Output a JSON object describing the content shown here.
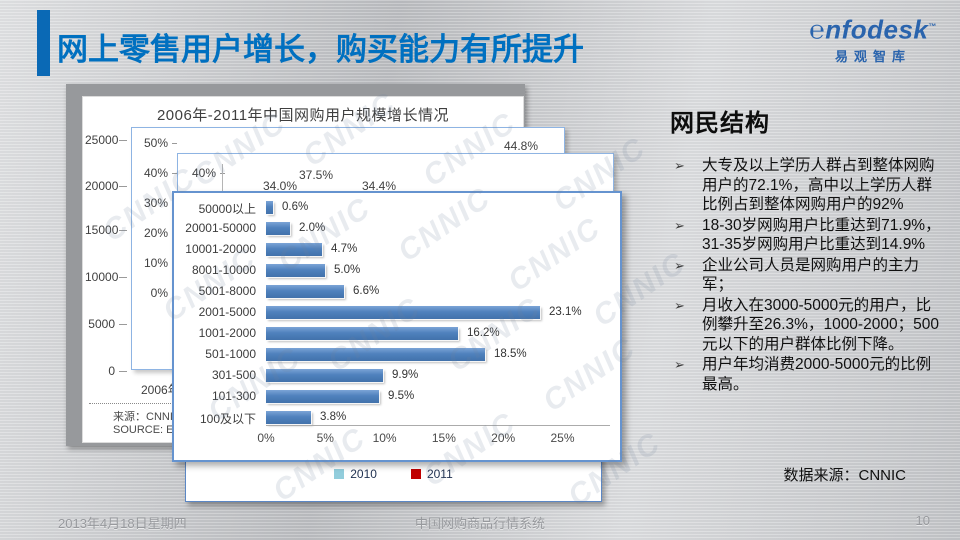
{
  "slide": {
    "title": "网上零售用户增长，购买能力有所提升",
    "logo": {
      "script_initial": "℮",
      "brand": "nfodesk",
      "tm": "™",
      "subtitle": "易观智库"
    },
    "footer": {
      "date": "2013年4月18日星期四",
      "system": "中国网购商品行情系统",
      "page": "10"
    }
  },
  "sidebar": {
    "heading": "网民结构",
    "bullet_marker": "➢",
    "bullets": [
      "大专及以上学历人群占到整体网购用户的72.1%，高中以上学历人群比例占到整体网购用户的92%",
      "18-30岁网购用户比重达到71.9%，31-35岁网购用户比重达到14.9%",
      "企业公司人员是网购用户的主力军；",
      "月收入在3000-5000元的用户，比例攀升至26.3%，1000-2000；500元以下的用户群体比例下降。",
      "用户年均消费2000-5000元的比例最高。"
    ],
    "source": "数据来源：CNNIC"
  },
  "watermark_text": "CNNIC",
  "chart_data": [
    {
      "panel": "back",
      "type": "bar",
      "title": "2006年-2011年中国网购用户规模增长情况",
      "y_ticks": [
        "25000",
        "20000",
        "15000",
        "10000",
        "5000",
        "0"
      ],
      "x_ticks": [
        "2006年"
      ],
      "source_lines": [
        "来源：CNNIC·",
        "SOURCE: Enf"
      ]
    },
    {
      "panel": "middle-growth",
      "type": "bar",
      "y_ticks": [
        "50%",
        "40%",
        "30%",
        "20%",
        "10%",
        "0%"
      ],
      "data_labels": [
        "44.8%"
      ]
    },
    {
      "panel": "middle-rate",
      "type": "bar",
      "y_ticks": [
        "40%"
      ],
      "data_labels": [
        "34.0%",
        "37.5%",
        "34.4%"
      ]
    },
    {
      "panel": "front-income",
      "type": "bar",
      "orientation": "horizontal",
      "categories": [
        "50000以上",
        "20001-50000",
        "10001-20000",
        "8001-10000",
        "5001-8000",
        "2001-5000",
        "1001-2000",
        "501-1000",
        "301-500",
        "101-300",
        "100及以下"
      ],
      "values": [
        0.6,
        2.0,
        4.7,
        5.0,
        6.6,
        23.1,
        16.2,
        18.5,
        9.9,
        9.5,
        3.8
      ],
      "value_labels": [
        "0.6%",
        "2.0%",
        "4.7%",
        "5.0%",
        "6.6%",
        "23.1%",
        "16.2%",
        "18.5%",
        "9.9%",
        "9.5%",
        "3.8%"
      ],
      "x_ticks": [
        "0%",
        "5%",
        "10%",
        "15%",
        "20%",
        "25%"
      ],
      "xlim": [
        0,
        25
      ],
      "bar_color": "#4f81bd",
      "legend": [
        {
          "label": "2010",
          "color": "#92cddc"
        },
        {
          "label": "2011",
          "color": "#c00000"
        }
      ]
    }
  ]
}
